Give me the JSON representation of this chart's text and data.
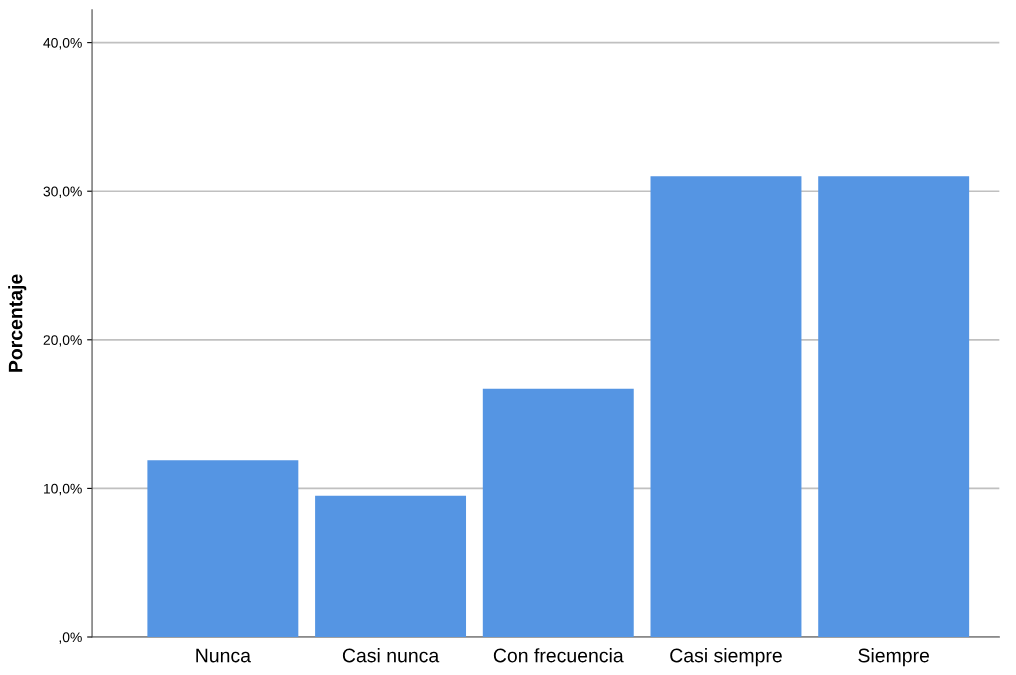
{
  "chart_data": {
    "type": "bar",
    "ylabel": "Porcentaje",
    "categories": [
      "Nunca",
      "Casi nunca",
      "Con frecuencia",
      "Casi siempre",
      "Siempre"
    ],
    "values": [
      11.9,
      9.5,
      16.7,
      31.0,
      31.0
    ],
    "color": "#5595e3",
    "ylim": [
      0,
      42.2
    ],
    "yticks": [
      {
        "value": 0,
        "label": ",0%"
      },
      {
        "value": 10,
        "label": "10,0%"
      },
      {
        "value": 20,
        "label": "20,0%"
      },
      {
        "value": 30,
        "label": "30,0%"
      },
      {
        "value": 40,
        "label": "40,0%"
      }
    ],
    "grid": "y"
  }
}
